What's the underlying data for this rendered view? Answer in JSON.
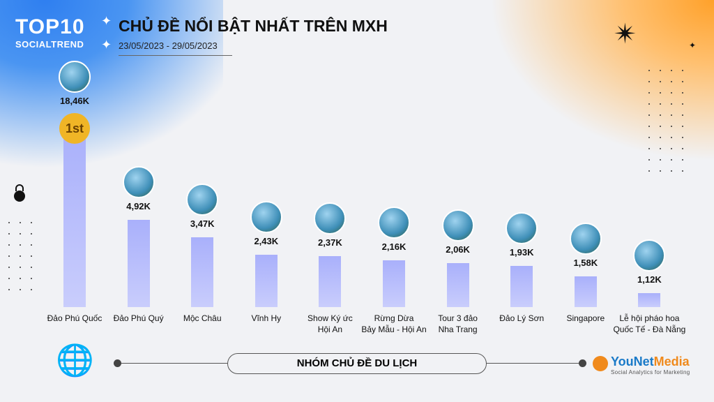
{
  "header": {
    "logo_top": "TOP10",
    "logo_sub": "SOCIALTREND",
    "title": "CHỦ ĐỀ NỔI BẬT NHẤT TRÊN MXH",
    "date_range": "23/05/2023 - 29/05/2023"
  },
  "medal": "1st",
  "footer": {
    "group_label": "NHÓM CHỦ ĐỀ DU LỊCH",
    "brand": "YouNet",
    "brand2": "Media",
    "brand_tagline": "Social Analytics for Marketing"
  },
  "colors": {
    "bar": "#b4b9fb",
    "accent_blue": "#2f7ff0",
    "accent_orange": "#ffa12a"
  },
  "chart_data": {
    "type": "bar",
    "title": "CHỦ ĐỀ NỔI BẬT NHẤT TRÊN MXH",
    "categories": [
      "Đảo Phú Quốc",
      "Đảo Phú Quý",
      "Mộc Châu",
      "Vĩnh Hy",
      "Show Ký ức\nHội An",
      "Rừng Dừa\nBảy Mẫu - Hội An",
      "Tour 3 đảo\nNha Trang",
      "Đảo Lý Sơn",
      "Singapore",
      "Lễ hội pháo hoa\nQuốc Tế - Đà Nẵng"
    ],
    "values": [
      18.46,
      4.92,
      3.47,
      2.43,
      2.37,
      2.16,
      2.06,
      1.93,
      1.58,
      1.12
    ],
    "value_labels": [
      "18,46K",
      "4,92K",
      "3,47K",
      "2,43K",
      "2,37K",
      "2,16K",
      "2,06K",
      "1,93K",
      "1,58K",
      "1,12K"
    ],
    "unit": "K",
    "xlabel": "",
    "ylabel": ""
  }
}
